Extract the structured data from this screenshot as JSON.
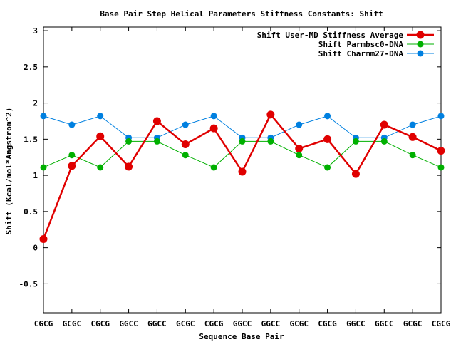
{
  "chart_data": {
    "type": "line",
    "title": "Base Pair Step Helical Parameters Stiffness Constants: Shift",
    "xlabel": "Sequence Base Pair",
    "ylabel": "Shift (Kcal/mol*Angstrom^2)",
    "categories": [
      "CGCG",
      "GCGC",
      "CGCG",
      "GGCC",
      "GGCC",
      "GCGC",
      "CGCG",
      "GGCC",
      "GGCC",
      "GCGC",
      "CGCG",
      "GGCC",
      "GGCC",
      "GCGC",
      "CGCG"
    ],
    "ylim": [
      -0.9,
      3.05
    ],
    "yticks": [
      -0.5,
      0,
      0.5,
      1,
      1.5,
      2,
      2.5,
      3
    ],
    "ytick_labels": [
      "-0.5",
      "0",
      "0.5",
      "1",
      "1.5",
      "2",
      "2.5",
      "3"
    ],
    "grid": false,
    "legend_position": "top-right",
    "series": [
      {
        "name": "Shift User-MD Stiffness Average",
        "color": "#e00000",
        "values": [
          0.12,
          1.13,
          1.54,
          1.12,
          1.75,
          1.43,
          1.65,
          1.05,
          1.84,
          1.37,
          1.5,
          1.02,
          1.7,
          1.53,
          1.34
        ]
      },
      {
        "name": "Shift Parmbsc0-DNA",
        "color": "#00b000",
        "values": [
          1.11,
          1.28,
          1.11,
          1.47,
          1.47,
          1.28,
          1.11,
          1.47,
          1.47,
          1.28,
          1.11,
          1.47,
          1.47,
          1.28,
          1.11
        ]
      },
      {
        "name": "Shift Charmm27-DNA",
        "color": "#0080e0",
        "values": [
          1.82,
          1.7,
          1.82,
          1.52,
          1.52,
          1.7,
          1.82,
          1.52,
          1.52,
          1.7,
          1.82,
          1.52,
          1.52,
          1.7,
          1.82
        ]
      }
    ]
  }
}
